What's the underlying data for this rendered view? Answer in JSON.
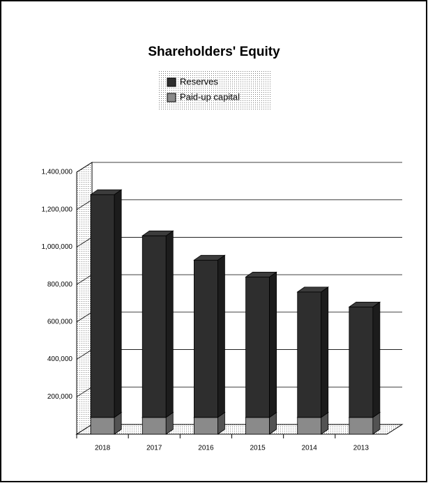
{
  "chart_data": {
    "type": "bar3d_stacked",
    "title": "Shareholders' Equity",
    "categories": [
      "2018",
      "2017",
      "2016",
      "2015",
      "2014",
      "2013"
    ],
    "series": [
      {
        "name": "Reserves",
        "color": "#2e2e2e",
        "values": [
          1190000,
          970000,
          840000,
          750000,
          670000,
          590000
        ]
      },
      {
        "name": "Paid-up capital",
        "color": "#8a8a8a",
        "values": [
          90000,
          90000,
          90000,
          90000,
          90000,
          90000
        ]
      }
    ],
    "ylim": [
      0,
      1400000
    ],
    "yticks": [
      {
        "value": 200000,
        "label": "200,000"
      },
      {
        "value": 400000,
        "label": "400,000"
      },
      {
        "value": 600000,
        "label": "600,000"
      },
      {
        "value": 800000,
        "label": "800,000"
      },
      {
        "value": 1000000,
        "label": "1,000,000"
      },
      {
        "value": 1200000,
        "label": "1,200,000"
      },
      {
        "value": 1400000,
        "label": "1,400,000"
      }
    ],
    "grid": true,
    "legend": "top"
  }
}
